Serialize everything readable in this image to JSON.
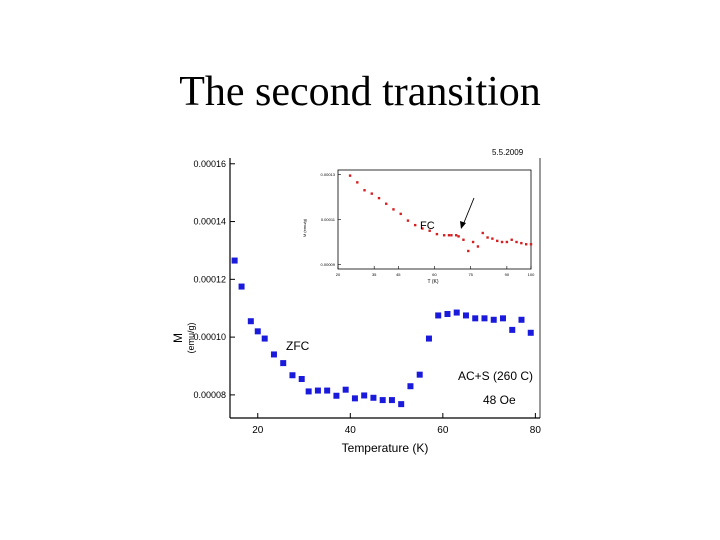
{
  "slide": {
    "title": "The second transition"
  },
  "figure": {
    "date": "5.5.2009"
  },
  "chart_data": [
    {
      "type": "scatter",
      "xlabel": "Temperature (K)",
      "ylabel": "M",
      "ylabel_sub": "(emu/g)",
      "xlim": [
        14,
        81
      ],
      "ylim": [
        7.2e-05,
        0.000162
      ],
      "x_ticks": [
        20,
        40,
        60,
        80
      ],
      "x_tick_labels": [
        "20",
        "40",
        "60",
        "80"
      ],
      "y_ticks": [
        8e-05,
        0.0001,
        0.00012,
        0.00014,
        0.00016
      ],
      "y_tick_labels": [
        "0.00008",
        "0.00010",
        "0.00012",
        "0.00014",
        "0.00016"
      ],
      "marker_color": "#1a1adc",
      "annotations": {
        "zfc": "ZFC",
        "sample": "AC+S (260 C)",
        "field": "48 Oe"
      },
      "series": [
        {
          "x": [
            15,
            16.5,
            18.5,
            20,
            21.5,
            23.5,
            25.5,
            27.5,
            29.5,
            31,
            33,
            35,
            37,
            39,
            41,
            43,
            45,
            47,
            49,
            51,
            53,
            55,
            57,
            59,
            61,
            63,
            65,
            67,
            69,
            71,
            73,
            75,
            77,
            79
          ],
          "y": [
            0.0001265,
            0.0001175,
            0.0001055,
            0.000102,
            9.95e-05,
            9.4e-05,
            9.1e-05,
            8.68e-05,
            8.55e-05,
            8.12e-05,
            8.15e-05,
            8.15e-05,
            7.97e-05,
            8.18e-05,
            7.88e-05,
            7.98e-05,
            7.9e-05,
            7.82e-05,
            7.82e-05,
            7.68e-05,
            8.3e-05,
            8.7e-05,
            9.95e-05,
            0.0001075,
            0.000108,
            0.0001085,
            0.0001075,
            0.0001065,
            0.0001065,
            0.000106,
            0.0001065,
            0.0001025,
            0.000106,
            0.0001015
          ]
        }
      ]
    },
    {
      "type": "scatter",
      "xlabel": "T (K)",
      "ylabel": "M (emu/g)",
      "annotation": "FC",
      "xlim": [
        20,
        100
      ],
      "ylim": [
        8.8e-05,
        0.000132
      ],
      "x_ticks": [
        20,
        35,
        45,
        60,
        75,
        90,
        100
      ],
      "x_tick_labels": [
        "20",
        "35",
        "45",
        "60",
        "75",
        "90",
        "100"
      ],
      "y_ticks": [
        9e-05,
        0.00011,
        0.00013
      ],
      "y_tick_labels": [
        "0.00009",
        "0.00011",
        "0.00013"
      ],
      "marker_color": "#d42020",
      "series": [
        {
          "x": [
            25,
            28,
            31,
            34,
            37,
            40,
            43,
            46,
            49,
            52,
            55,
            58,
            61,
            64,
            66,
            67,
            69,
            70,
            72,
            74,
            76,
            78,
            80,
            82,
            84,
            86,
            88,
            90,
            92,
            94,
            96,
            98,
            100
          ],
          "y": [
            0.0001295,
            0.0001265,
            0.000123,
            0.0001215,
            0.0001195,
            0.000117,
            0.0001145,
            0.0001125,
            0.0001095,
            0.0001075,
            0.000106,
            0.000105,
            0.0001035,
            0.000103,
            0.000103,
            0.000103,
            0.000103,
            0.0001025,
            0.000101,
            9.6e-05,
            0.0001,
            9.8e-05,
            0.000104,
            0.000102,
            0.0001015,
            0.0001005,
            0.0001,
            0.0001,
            0.000101,
            0.0001,
            9.95e-05,
            9.9e-05,
            9.9e-05
          ]
        }
      ]
    }
  ]
}
